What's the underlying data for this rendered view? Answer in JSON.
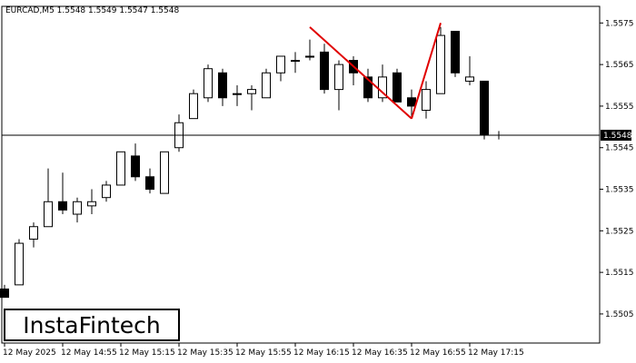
{
  "header": {
    "symbol_line": "EURCAD,M5  1.5548 1.5549 1.5547 1.5548"
  },
  "logo": {
    "text": "InstaFintech"
  },
  "colors": {
    "background": "#ffffff",
    "bull_fill": "#ffffff",
    "bear_fill": "#000000",
    "candle_outline": "#000000",
    "pattern_line": "#e00000",
    "price_line": "#000000",
    "price_badge_bg": "#000000"
  },
  "chart_data": {
    "type": "candlestick",
    "title": "EURCAD,M5  1.5548 1.5549 1.5547 1.5548",
    "ylim": [
      1.5498,
      1.5579
    ],
    "y_ticks": [
      "1.5505",
      "1.5515",
      "1.5525",
      "1.5535",
      "1.5545",
      "1.5555",
      "1.5565",
      "1.5575"
    ],
    "x_ticks": [
      "12 May 2025",
      "12 May 14:55",
      "12 May 15:15",
      "12 May 15:35",
      "12 May 15:55",
      "12 May 16:15",
      "12 May 16:35",
      "12 May 16:55",
      "12 May 17:15"
    ],
    "current_price": "1.5548",
    "candles": [
      {
        "o": 1.5511,
        "h": 1.5512,
        "l": 1.5509,
        "c": 1.5509
      },
      {
        "o": 1.5512,
        "h": 1.5523,
        "l": 1.5512,
        "c": 1.5522
      },
      {
        "o": 1.5523,
        "h": 1.5527,
        "l": 1.5521,
        "c": 1.5526
      },
      {
        "o": 1.5526,
        "h": 1.554,
        "l": 1.5526,
        "c": 1.5532
      },
      {
        "o": 1.5532,
        "h": 1.5539,
        "l": 1.5529,
        "c": 1.553
      },
      {
        "o": 1.5529,
        "h": 1.5533,
        "l": 1.5527,
        "c": 1.5532
      },
      {
        "o": 1.5531,
        "h": 1.5535,
        "l": 1.5529,
        "c": 1.5532
      },
      {
        "o": 1.5533,
        "h": 1.5537,
        "l": 1.5532,
        "c": 1.5536
      },
      {
        "o": 1.5536,
        "h": 1.5544,
        "l": 1.5536,
        "c": 1.5544
      },
      {
        "o": 1.5543,
        "h": 1.5546,
        "l": 1.5537,
        "c": 1.5538
      },
      {
        "o": 1.5538,
        "h": 1.554,
        "l": 1.5534,
        "c": 1.5535
      },
      {
        "o": 1.5534,
        "h": 1.5544,
        "l": 1.5534,
        "c": 1.5544
      },
      {
        "o": 1.5545,
        "h": 1.5553,
        "l": 1.5544,
        "c": 1.5551
      },
      {
        "o": 1.5552,
        "h": 1.5559,
        "l": 1.5552,
        "c": 1.5558
      },
      {
        "o": 1.5557,
        "h": 1.5565,
        "l": 1.5556,
        "c": 1.5564
      },
      {
        "o": 1.5563,
        "h": 1.5564,
        "l": 1.5555,
        "c": 1.5557
      },
      {
        "o": 1.5558,
        "h": 1.556,
        "l": 1.5555,
        "c": 1.5558
      },
      {
        "o": 1.5558,
        "h": 1.556,
        "l": 1.5554,
        "c": 1.5559
      },
      {
        "o": 1.5557,
        "h": 1.5564,
        "l": 1.5557,
        "c": 1.5563
      },
      {
        "o": 1.5563,
        "h": 1.5567,
        "l": 1.5561,
        "c": 1.5567
      },
      {
        "o": 1.5566,
        "h": 1.5568,
        "l": 1.5563,
        "c": 1.5566
      },
      {
        "o": 1.5567,
        "h": 1.5571,
        "l": 1.5566,
        "c": 1.5567
      },
      {
        "o": 1.5568,
        "h": 1.557,
        "l": 1.5558,
        "c": 1.5559
      },
      {
        "o": 1.5559,
        "h": 1.5566,
        "l": 1.5554,
        "c": 1.5565
      },
      {
        "o": 1.5566,
        "h": 1.5567,
        "l": 1.556,
        "c": 1.5563
      },
      {
        "o": 1.5562,
        "h": 1.5564,
        "l": 1.5556,
        "c": 1.5557
      },
      {
        "o": 1.5557,
        "h": 1.5565,
        "l": 1.5556,
        "c": 1.5562
      },
      {
        "o": 1.5563,
        "h": 1.5564,
        "l": 1.5556,
        "c": 1.5556
      },
      {
        "o": 1.5557,
        "h": 1.5559,
        "l": 1.5552,
        "c": 1.5555
      },
      {
        "o": 1.5554,
        "h": 1.5561,
        "l": 1.5552,
        "c": 1.5559
      },
      {
        "o": 1.5558,
        "h": 1.5574,
        "l": 1.5558,
        "c": 1.5572
      },
      {
        "o": 1.5573,
        "h": 1.5573,
        "l": 1.5562,
        "c": 1.5563
      },
      {
        "o": 1.5561,
        "h": 1.5567,
        "l": 1.556,
        "c": 1.5562
      },
      {
        "o": 1.5561,
        "h": 1.5561,
        "l": 1.5547,
        "c": 1.5548
      },
      {
        "o": 1.5548,
        "h": 1.5549,
        "l": 1.5547,
        "c": 1.5548
      }
    ],
    "pattern_lines": [
      {
        "from": {
          "candle": 21,
          "price": 1.5574
        },
        "to": {
          "candle": 28,
          "price": 1.5552
        }
      },
      {
        "from": {
          "candle": 28,
          "price": 1.5552
        },
        "to": {
          "candle": 30,
          "price": 1.5575
        }
      }
    ]
  }
}
